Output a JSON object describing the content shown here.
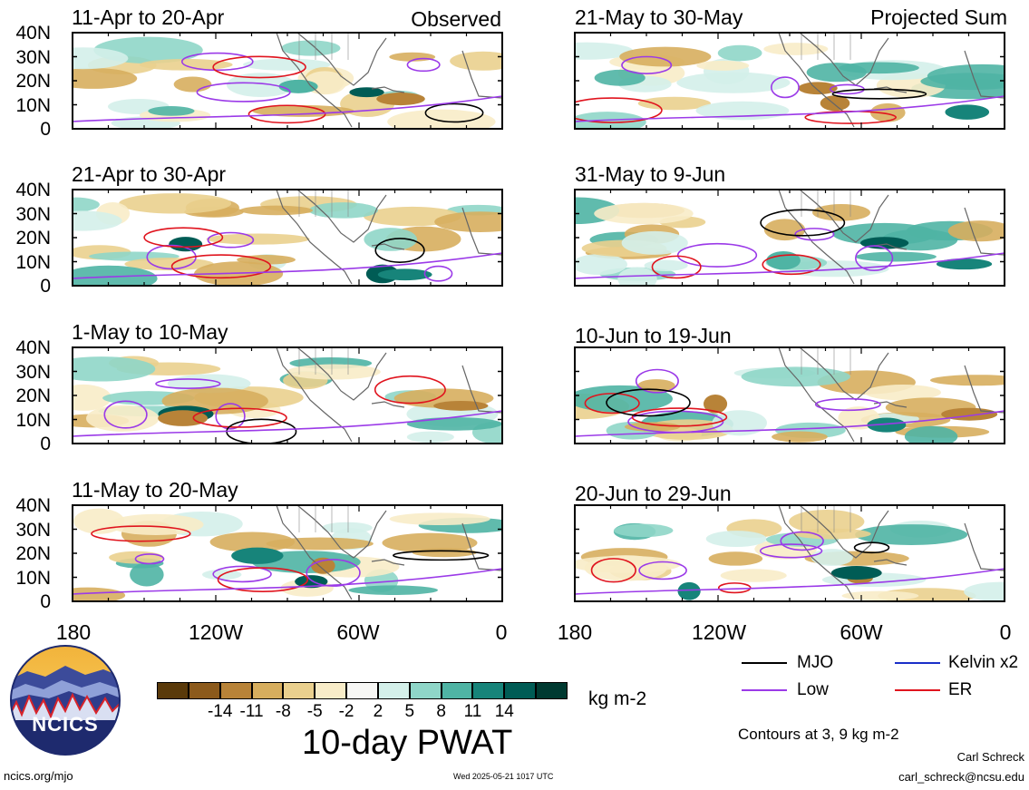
{
  "panels": [
    {
      "title": "11-Apr to 20-Apr",
      "tag": "Observed"
    },
    {
      "title": "21-May to 30-May",
      "tag": "Projected Sum"
    },
    {
      "title": "21-Apr to 30-Apr",
      "tag": ""
    },
    {
      "title": "31-May to 9-Jun",
      "tag": ""
    },
    {
      "title": "1-May to 10-May",
      "tag": ""
    },
    {
      "title": "10-Jun to 19-Jun",
      "tag": ""
    },
    {
      "title": "11-May to 20-May",
      "tag": ""
    },
    {
      "title": "20-Jun to 29-Jun",
      "tag": ""
    }
  ],
  "y_ticks": [
    "40N",
    "30N",
    "20N",
    "10N",
    "0"
  ],
  "x_ticks": [
    "180",
    "120W",
    "60W",
    "0"
  ],
  "colorbar": {
    "colors": [
      "#5a3a0a",
      "#8c5a1c",
      "#b88338",
      "#d7ae5e",
      "#ead08e",
      "#f8ecc8",
      "#f7f7f5",
      "#d4f0ea",
      "#8fd6c8",
      "#4fb4a4",
      "#17847a",
      "#005c55",
      "#003a31"
    ],
    "labels": [
      "-14",
      "-11",
      "-8",
      "-5",
      "-2",
      "2",
      "5",
      "8",
      "11",
      "14"
    ],
    "units": "kg m-2",
    "title": "10-day PWAT"
  },
  "legend": [
    {
      "label": "MJO",
      "color": "#000000"
    },
    {
      "label": "Kelvin x2",
      "color": "#1a2fc8"
    },
    {
      "label": "Low",
      "color": "#9b3ae8"
    },
    {
      "label": "ER",
      "color": "#e0141e"
    }
  ],
  "contour_note": "Contours at 3, 9 kg m-2",
  "logo_text": "NCICS",
  "footer": {
    "site": "ncics.org/mjo",
    "timestamp": "Wed 2025-05-21 1017 UTC",
    "author": "Carl Schreck",
    "email": "carl_schreck@ncsu.edu"
  }
}
